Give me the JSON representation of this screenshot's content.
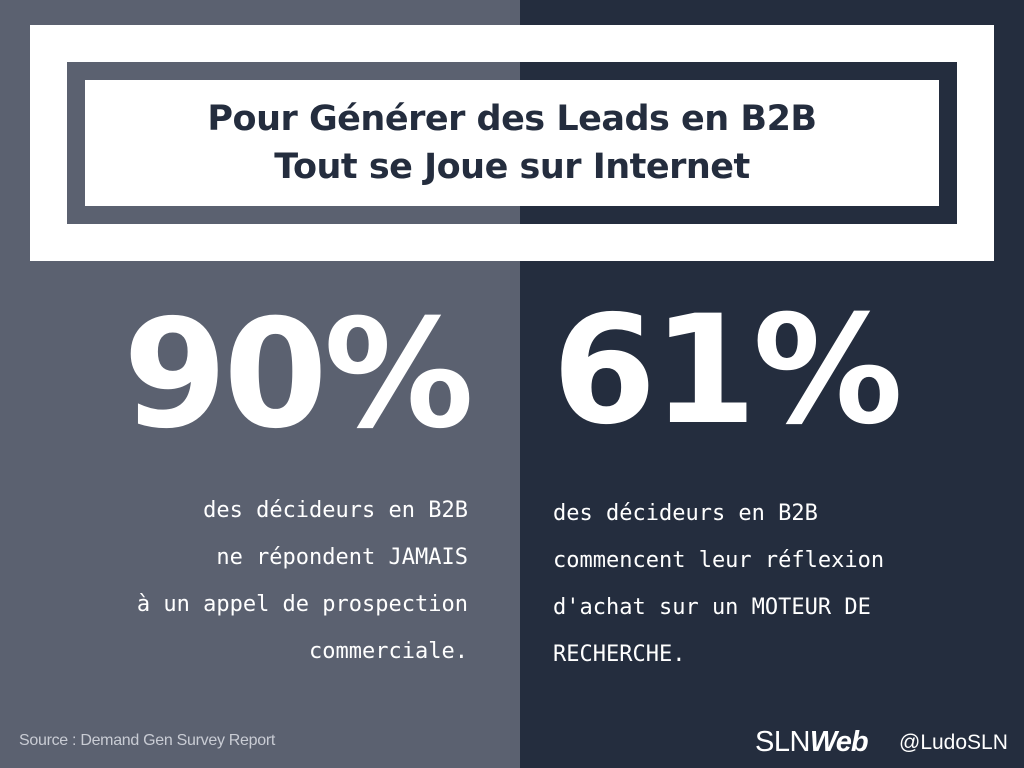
{
  "title": {
    "line1": "Pour Générer des Leads en B2B",
    "line2": "Tout se Joue sur Internet"
  },
  "left": {
    "stat": "90%",
    "lines": [
      "des décideurs en B2B",
      "ne répondent JAMAIS",
      "à un appel de prospection",
      "commerciale."
    ]
  },
  "right": {
    "stat": "61%",
    "lines": [
      "des décideurs en B2B",
      "commencent leur réflexion",
      "d'achat sur un MOTEUR DE",
      "RECHERCHE."
    ]
  },
  "footer": {
    "source": "Source : Demand Gen Survey Report",
    "logo_part1": "SLN",
    "logo_part2": "Web",
    "handle": "@LudoSLN"
  },
  "colors": {
    "left_bg": "#5b6170",
    "right_bg": "#242d3e",
    "frame": "#ffffff"
  }
}
